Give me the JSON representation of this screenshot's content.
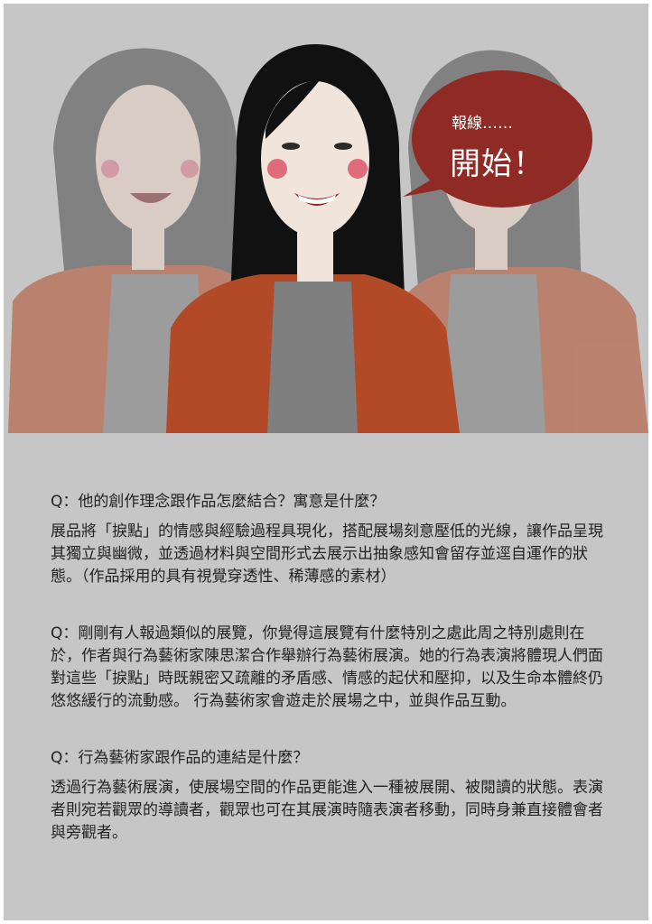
{
  "colors": {
    "page_background": "#c6c6c6",
    "bubble": "#8f2a25",
    "jacket": "#b24a28",
    "shirt": "#7f7f7f",
    "hair": "#111111"
  },
  "speech_bubble": {
    "small_text": "報線……",
    "big_text": "開始！"
  },
  "qa": [
    {
      "question": "Q：他的創作理念跟作品怎麼結合？寓意是什麼？",
      "answer": "展品將「捩點」的情感與經驗過程具現化，搭配展場刻意壓低的光線，讓作品呈現其獨立與幽微，並透過材料與空間形式去展示出抽象感知會留存並逕自運作的狀態。（作品採用的具有視覺穿透性、稀薄感的素材）"
    },
    {
      "question": "",
      "answer": "Q：剛剛有人報過類似的展覽，你覺得這展覽有什麼特別之處此周之特別處則在於，作者與行為藝術家陳思潔合作舉辦行為藝術展演。她的行為表演將體現人們面對這些「捩點」時既親密又疏離的矛盾感、情感的起伏和壓抑，以及生命本體終仍悠悠緩行的流動感。 行為藝術家會遊走於展場之中，並與作品互動。"
    },
    {
      "question": "Q：行為藝術家跟作品的連結是什麼？",
      "answer": "透過行為藝術展演，使展場空間的作品更能進入一種被展開、被閱讀的狀態。表演者則宛若觀眾的導讀者，觀眾也可在其展演時隨表演者移動，同時身兼直接體會者與旁觀者。"
    }
  ]
}
